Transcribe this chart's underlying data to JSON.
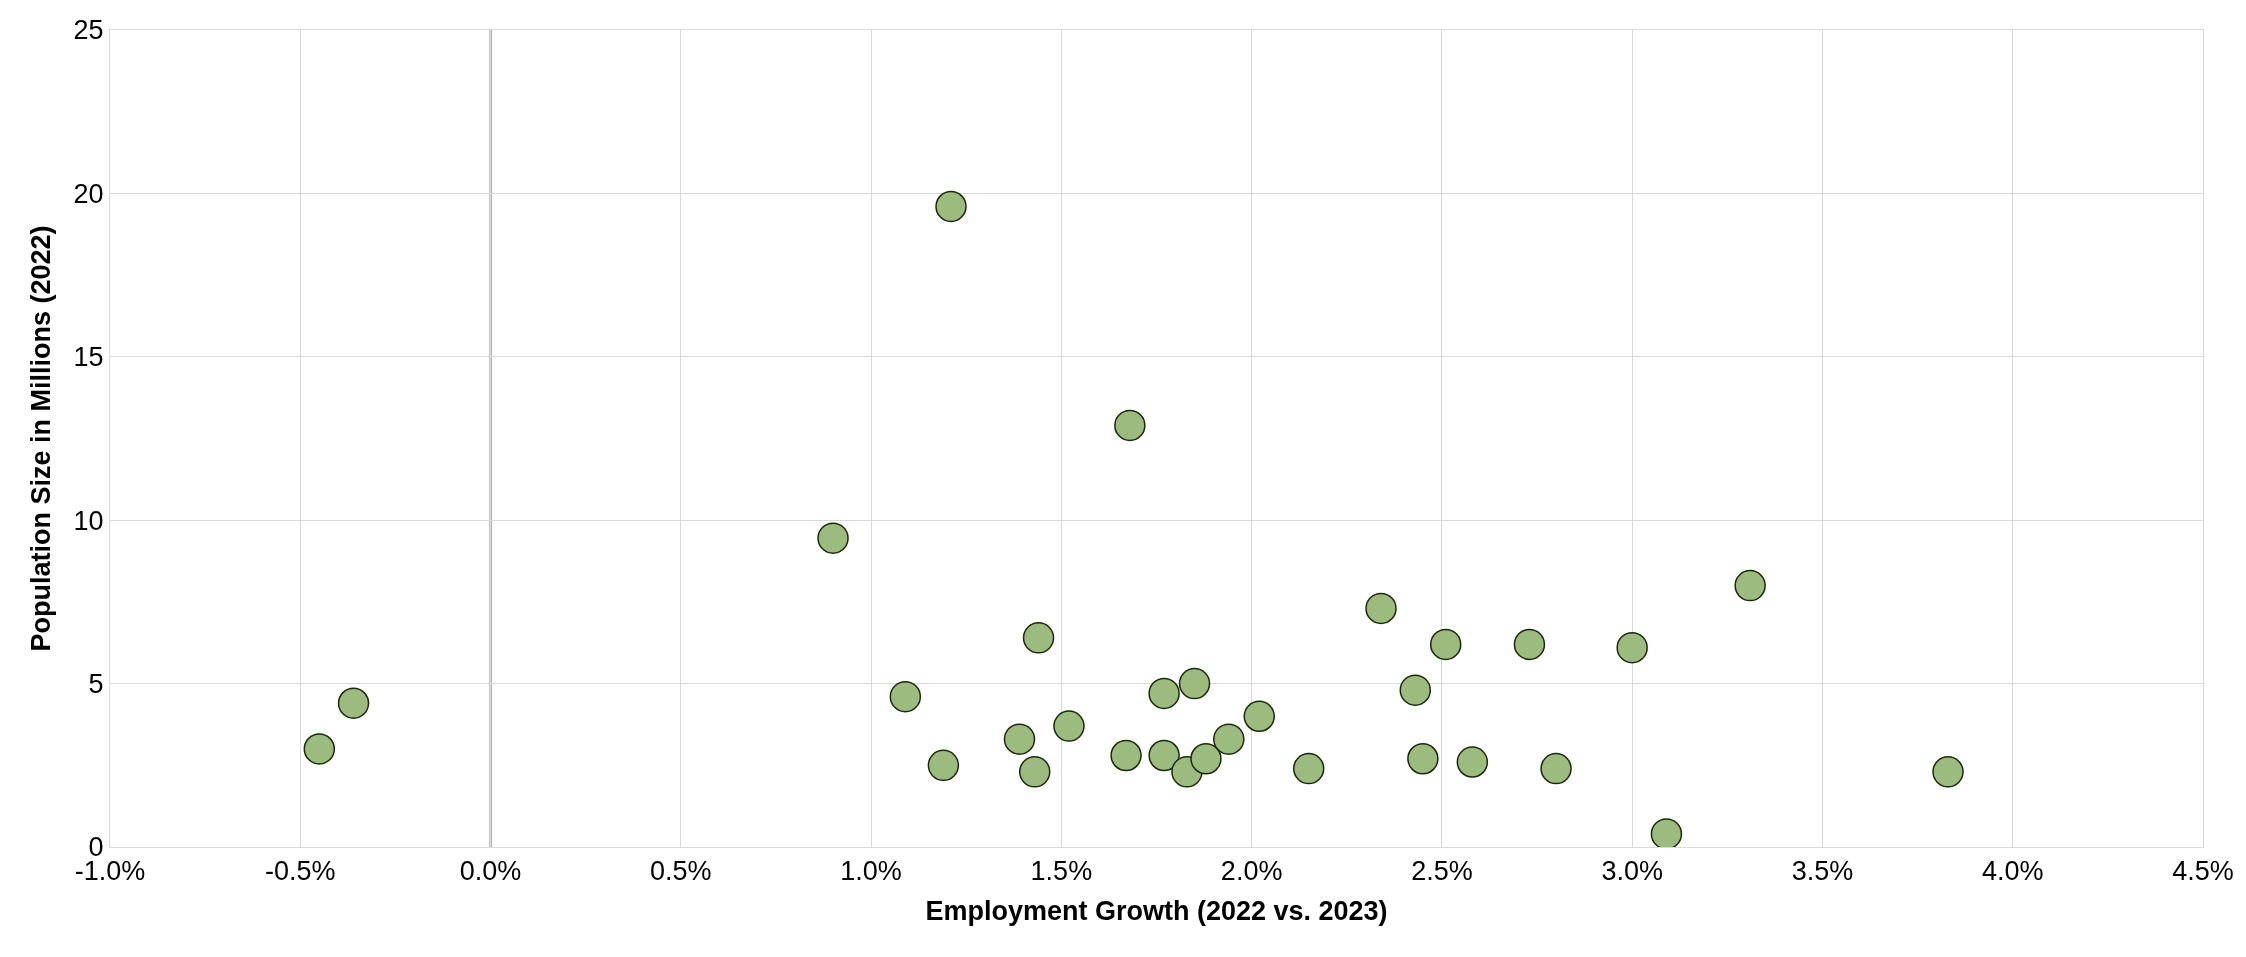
{
  "chart_data": {
    "type": "scatter",
    "xlabel": "Employment Growth (2022 vs. 2023)",
    "ylabel": "Population Size in Millions (2022)",
    "x": [
      -0.45,
      -0.36,
      0.9,
      1.21,
      1.09,
      1.19,
      1.39,
      1.44,
      1.43,
      1.52,
      1.68,
      1.67,
      1.77,
      1.77,
      1.85,
      1.83,
      1.88,
      1.94,
      2.02,
      2.15,
      2.34,
      2.43,
      2.45,
      2.51,
      2.58,
      2.73,
      2.8,
      3.0,
      3.09,
      3.31,
      3.83
    ],
    "values": [
      3.0,
      4.4,
      9.45,
      19.6,
      4.6,
      2.5,
      3.3,
      6.4,
      2.3,
      3.7,
      12.9,
      2.8,
      4.7,
      2.8,
      5.0,
      2.3,
      2.7,
      3.3,
      4.0,
      2.4,
      7.3,
      4.8,
      2.7,
      6.2,
      2.6,
      6.2,
      2.4,
      6.1,
      0.4,
      8.0,
      2.3
    ],
    "color": "#9bbb7f",
    "marker": "circle",
    "xlim": [
      -1.0,
      4.5
    ],
    "xticks": [
      {
        "value": -1.0,
        "label": "-1.0%"
      },
      {
        "value": -0.5,
        "label": "-0.5%"
      },
      {
        "value": 0.0,
        "label": "0.0%"
      },
      {
        "value": 0.5,
        "label": "0.5%"
      },
      {
        "value": 1.0,
        "label": "1.0%"
      },
      {
        "value": 1.5,
        "label": "1.5%"
      },
      {
        "value": 2.0,
        "label": "2.0%"
      },
      {
        "value": 2.5,
        "label": "2.5%"
      },
      {
        "value": 3.0,
        "label": "3.0%"
      },
      {
        "value": 3.5,
        "label": "3.5%"
      },
      {
        "value": 4.0,
        "label": "4.0%"
      },
      {
        "value": 4.5,
        "label": "4.5%"
      }
    ],
    "ylim": [
      0,
      25
    ],
    "yticks": [
      0,
      5,
      10,
      15,
      20,
      25
    ],
    "grid": true,
    "ref_lines": [
      {
        "axis": "x",
        "value": 0,
        "color": "#000000"
      }
    ]
  }
}
